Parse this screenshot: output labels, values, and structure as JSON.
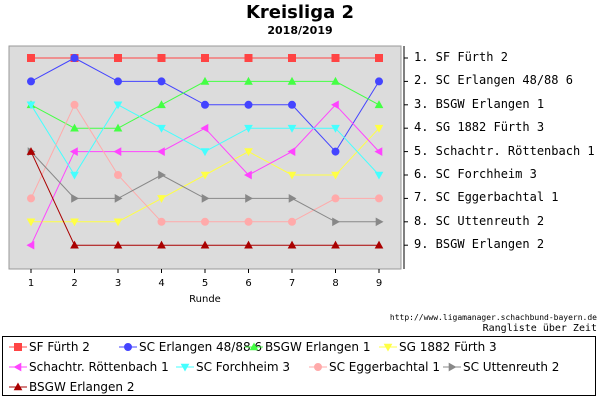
{
  "chart_data": {
    "type": "line",
    "title": "Kreisliga 2",
    "subtitle": "2018/2019",
    "xlabel": "Runde",
    "x": [
      1,
      2,
      3,
      4,
      5,
      6,
      7,
      8,
      9
    ],
    "ylim": [
      1,
      9
    ],
    "y_inverted": true,
    "grid": false,
    "rank_labels": [
      "1. SF Fürth 2",
      "2. SC Erlangen 48/88 6",
      "3. BSGW Erlangen 1",
      "4. SG 1882 Fürth 3",
      "5. Schachtr. Röttenbach 1",
      "6. SC Forchheim 3",
      "7. SC Eggerbachtal 1",
      "8. SC Uttenreuth 2",
      "9. BSGW Erlangen 2"
    ],
    "series": [
      {
        "name": "SF Fürth 2",
        "color": "#ff4444",
        "marker": "square",
        "values": [
          1,
          1,
          1,
          1,
          1,
          1,
          1,
          1,
          1
        ]
      },
      {
        "name": "SC Erlangen 48/88 6",
        "color": "#4444ff",
        "marker": "circle",
        "values": [
          2,
          1,
          2,
          2,
          3,
          3,
          3,
          5,
          2
        ]
      },
      {
        "name": "BSGW Erlangen 1",
        "color": "#44ff44",
        "marker": "triangle-up",
        "values": [
          3,
          4,
          4,
          3,
          2,
          2,
          2,
          2,
          3
        ]
      },
      {
        "name": "SG 1882 Fürth 3",
        "color": "#ffff44",
        "marker": "triangle-down",
        "values": [
          8,
          8,
          8,
          7,
          6,
          5,
          6,
          6,
          4
        ]
      },
      {
        "name": "Schachtr. Röttenbach 1",
        "color": "#ff44ff",
        "marker": "triangle-left",
        "values": [
          9,
          5,
          5,
          5,
          4,
          6,
          5,
          3,
          5
        ]
      },
      {
        "name": "SC Forchheim 3",
        "color": "#44ffff",
        "marker": "triangle-down",
        "values": [
          3,
          6,
          3,
          4,
          5,
          4,
          4,
          4,
          6
        ]
      },
      {
        "name": "SC Eggerbachtal 1",
        "color": "#ffaaaa",
        "marker": "circle",
        "values": [
          7,
          3,
          6,
          8,
          8,
          8,
          8,
          7,
          7
        ]
      },
      {
        "name": "SC Uttenreuth 2",
        "color": "#888888",
        "marker": "triangle-right",
        "values": [
          5,
          7,
          7,
          6,
          7,
          7,
          7,
          8,
          8
        ]
      },
      {
        "name": "BSGW Erlangen 2",
        "color": "#aa0000",
        "marker": "triangle-up",
        "values": [
          5,
          9,
          9,
          9,
          9,
          9,
          9,
          9,
          9
        ]
      }
    ]
  },
  "footer": {
    "url": "http://www.ligamanager.schachbund-bayern.de",
    "caption": "Rangliste über Zeit"
  }
}
